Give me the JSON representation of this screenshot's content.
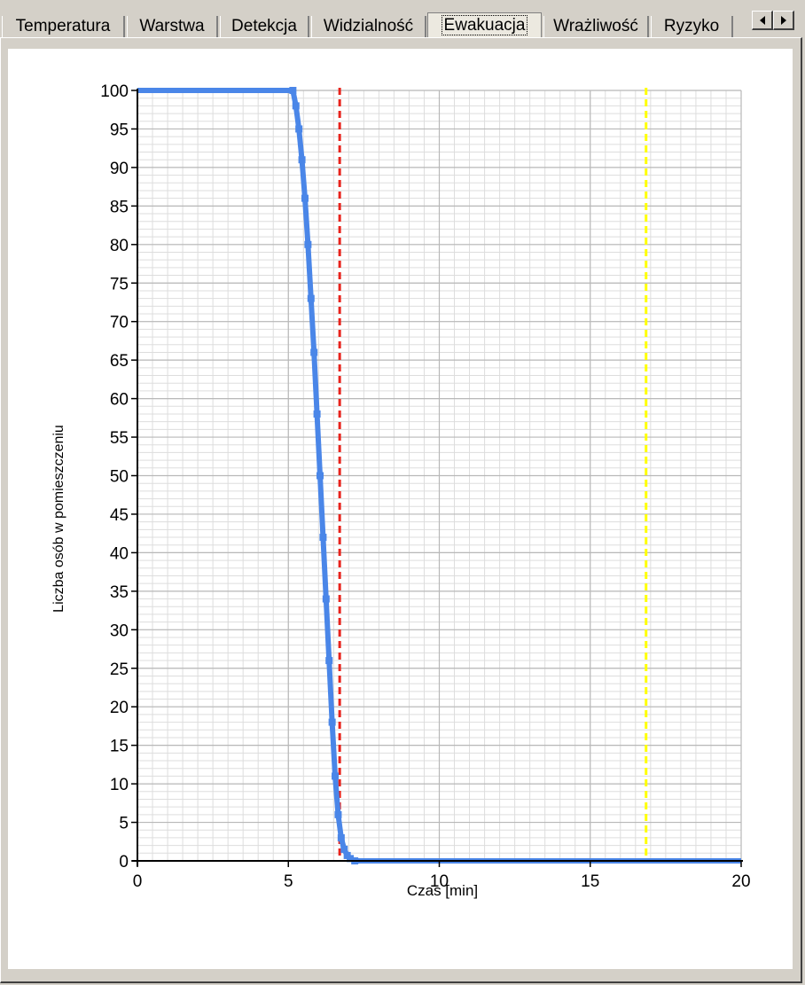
{
  "tabs": [
    {
      "label": "Temperatura",
      "active": false
    },
    {
      "label": "Warstwa",
      "active": false
    },
    {
      "label": "Detekcja",
      "active": false
    },
    {
      "label": "Widzialność",
      "active": false
    },
    {
      "label": "Ewakuacja",
      "active": true
    },
    {
      "label": "Wrażliwość",
      "active": false
    },
    {
      "label": "Ryzyko",
      "active": false
    }
  ],
  "chart_data": {
    "type": "line",
    "title": "",
    "xlabel": "Czas [min]",
    "ylabel": "Liczba osób w pomieszczeniu",
    "xlim": [
      0,
      20
    ],
    "ylim": [
      0,
      100
    ],
    "x_major_ticks": [
      0,
      5,
      10,
      15,
      20
    ],
    "y_major_ticks": [
      0,
      5,
      10,
      15,
      20,
      25,
      30,
      35,
      40,
      45,
      50,
      55,
      60,
      65,
      70,
      75,
      80,
      85,
      90,
      95,
      100
    ],
    "x_minor_step": 0.5,
    "y_minor_step": 1,
    "grid": true,
    "series": [
      {
        "color": "#4a86e8",
        "x": [
          0,
          5.15,
          5.25,
          5.35,
          5.45,
          5.55,
          5.65,
          5.75,
          5.85,
          5.95,
          6.05,
          6.15,
          6.25,
          6.35,
          6.45,
          6.55,
          6.65,
          6.75,
          6.85,
          6.95,
          7.05,
          7.2,
          20
        ],
        "y": [
          100,
          100,
          98,
          95,
          91,
          86,
          80,
          73,
          66,
          58,
          50,
          42,
          34,
          26,
          18,
          11,
          6,
          3,
          1.5,
          0.7,
          0.3,
          0,
          0
        ]
      }
    ],
    "reference_lines": [
      {
        "x": 6.7,
        "color": "#e8231c",
        "style": "dashed"
      },
      {
        "x": 16.85,
        "color": "#ffff00",
        "style": "dashed"
      }
    ]
  }
}
